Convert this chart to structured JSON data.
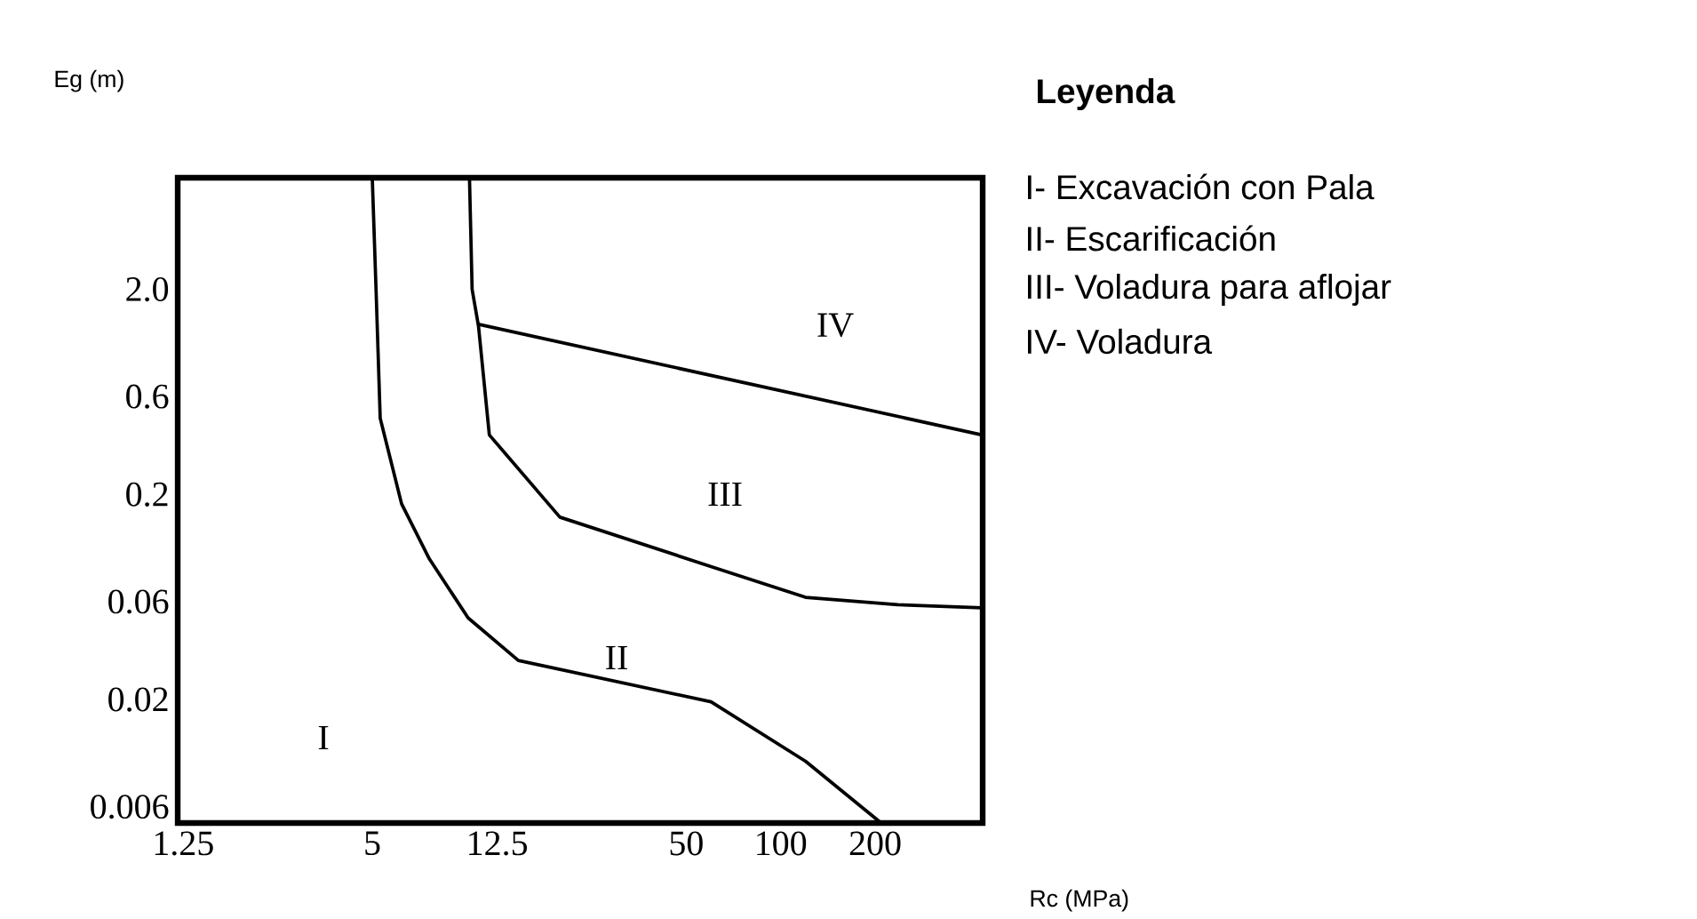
{
  "chart_data": {
    "type": "line",
    "xlabel": "Rc (MPa)",
    "ylabel": "Eg (m)",
    "log": "xy",
    "grid": false,
    "xlim": [
      1.2,
      440
    ],
    "ylim": [
      0.005,
      7
    ],
    "xticks": [
      1.25,
      5,
      12.5,
      50,
      100,
      200
    ],
    "yticks": [
      0.006,
      0.02,
      0.06,
      0.2,
      0.6,
      {
        "value": 2,
        "label": "2.0"
      }
    ],
    "series": [
      {
        "color": "#000000",
        "x": [
          5,
          5.14,
          5.3,
          6.2,
          7.6,
          10.1,
          14.6,
          60,
          120,
          209
        ],
        "values": [
          7,
          2,
          0.47,
          0.18,
          0.097,
          0.05,
          0.031,
          0.0195,
          0.01,
          0.005
        ]
      },
      {
        "color": "#000000",
        "x": [
          10.2,
          10.4,
          10.9,
          11.8,
          19.8,
          60,
          120,
          236,
          438
        ],
        "values": [
          7,
          2,
          1.32,
          0.39,
          0.155,
          0.089,
          0.063,
          0.058,
          0.056
        ]
      },
      {
        "color": "#000000",
        "x": [
          10.9,
          438
        ],
        "values": [
          1.35,
          0.39
        ]
      }
    ],
    "annotations": [
      "I",
      "II",
      "III",
      "IV",
      "Leyenda",
      "I- Excavación con Pala",
      "II- Escarificación",
      "III- Voladura para aflojar",
      "IV- Voladura"
    ]
  }
}
